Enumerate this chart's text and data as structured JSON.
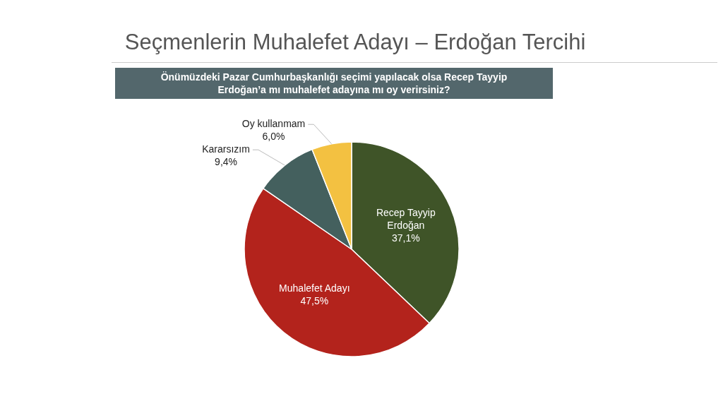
{
  "chart_data": {
    "type": "pie",
    "title": "Seçmenlerin Muhalefet Adayı – Erdoğan Tercihi",
    "subtitle": "Önümüzdeki Pazar Cumhurbaşkanlığı seçimi yapılacak olsa Recep Tayyip Erdoğan’a mı muhalefet adayına mı oy verirsiniz?",
    "categories": [
      "Recep Tayyip Erdoğan",
      "Muhalefet Adayı",
      "Kararsızım",
      "Oy kullanmam"
    ],
    "values": [
      37.1,
      47.5,
      9.4,
      6.0
    ],
    "colors": [
      "#3f5428",
      "#b3231c",
      "#44605e",
      "#f3c141"
    ],
    "value_labels": [
      "37,1%",
      "47,5%",
      "9,4%",
      "6,0%"
    ],
    "legend": false
  }
}
